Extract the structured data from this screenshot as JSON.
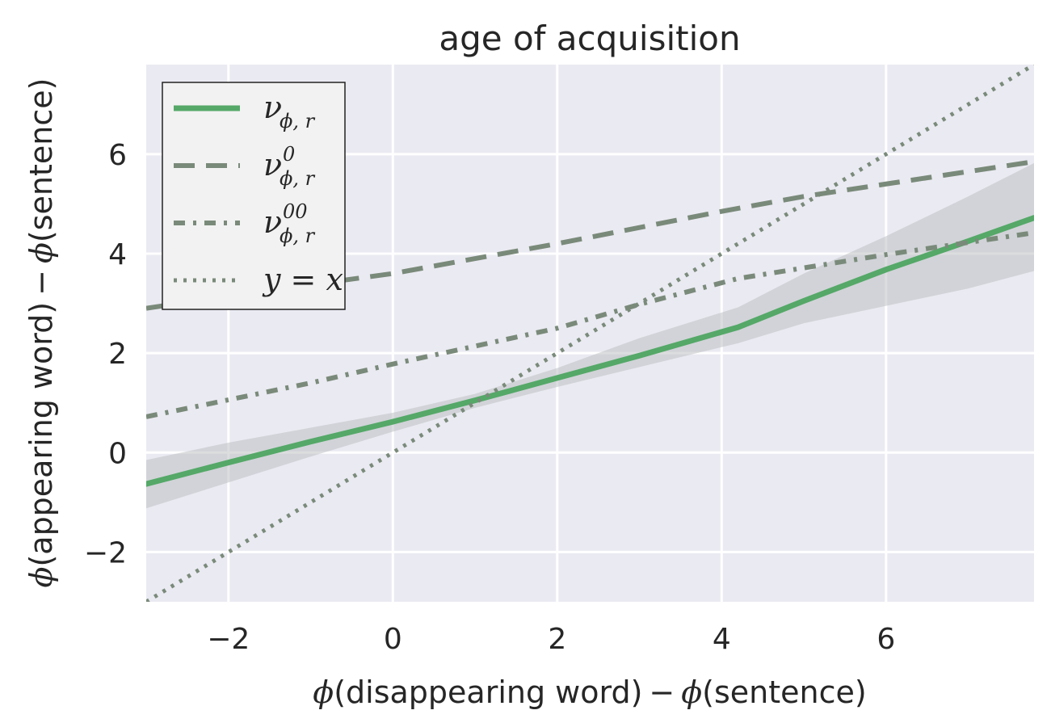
{
  "chart_data": {
    "type": "line",
    "title": "age of acquisition",
    "xlabel": {
      "prefix": "ϕ",
      "text": "(disappearing word)",
      "minus": "−",
      "prefix2": "ϕ",
      "text2": "(sentence)"
    },
    "ylabel": {
      "prefix": "ϕ",
      "text": "(appearing word)",
      "minus": "−",
      "prefix2": "ϕ",
      "text2": "(sentence)"
    },
    "xlim": [
      -3,
      7.8
    ],
    "ylim": [
      -3,
      7.8
    ],
    "xticks": [
      -2,
      0,
      2,
      4,
      6
    ],
    "yticks": [
      -2,
      0,
      2,
      4,
      6
    ],
    "xtick_labels": [
      "−2",
      "0",
      "2",
      "4",
      "6"
    ],
    "ytick_labels": [
      "−2",
      "0",
      "2",
      "4",
      "6"
    ],
    "grid": true,
    "legend_position": "top-left",
    "colors": {
      "background": "#eaeaf2",
      "grid": "#ffffff",
      "green": "#55a868",
      "gray": "#7a8a7a",
      "band": "#b8bcbe"
    },
    "series": [
      {
        "name": "νϕ,r",
        "legend": {
          "base": "ν",
          "sup": "",
          "sub": "ϕ, r"
        },
        "style": "solid",
        "color": "#55a868",
        "x": [
          -3,
          -2,
          -1,
          0,
          1,
          2,
          3,
          4.2,
          5,
          6,
          7,
          7.8
        ],
        "y": [
          -0.63,
          -0.2,
          0.22,
          0.62,
          1.05,
          1.5,
          1.95,
          2.52,
          3.05,
          3.68,
          4.25,
          4.72
        ],
        "ci_low": [
          -1.12,
          -0.6,
          -0.08,
          0.42,
          0.9,
          1.32,
          1.72,
          2.2,
          2.6,
          2.95,
          3.3,
          3.65
        ],
        "ci_high": [
          -0.15,
          0.2,
          0.5,
          0.8,
          1.18,
          1.7,
          2.3,
          2.92,
          3.6,
          4.35,
          5.15,
          5.82
        ]
      },
      {
        "name": "ν⁰ϕ,r",
        "legend": {
          "base": "ν",
          "sup": "0",
          "sub": "ϕ, r"
        },
        "style": "dashed",
        "color": "#7a8a7a",
        "x": [
          -3,
          -2,
          0,
          2,
          4,
          5,
          6,
          7.8
        ],
        "y": [
          2.9,
          3.15,
          3.6,
          4.2,
          4.85,
          5.15,
          5.4,
          5.85
        ]
      },
      {
        "name": "ν⁰⁰ϕ,r",
        "legend": {
          "base": "ν",
          "sup": "00",
          "sub": "ϕ, r"
        },
        "style": "dashdot",
        "color": "#7a8a7a",
        "x": [
          -3,
          -1,
          0,
          2,
          3,
          4.2,
          6,
          7.8
        ],
        "y": [
          0.72,
          1.4,
          1.78,
          2.5,
          2.98,
          3.5,
          3.98,
          4.42
        ]
      },
      {
        "name": "y=x",
        "legend": {
          "base": "y = x",
          "sup": "",
          "sub": ""
        },
        "style": "dotted",
        "color": "#7a8a7a",
        "x": [
          -3,
          7.8
        ],
        "y": [
          -3,
          7.8
        ]
      }
    ]
  }
}
